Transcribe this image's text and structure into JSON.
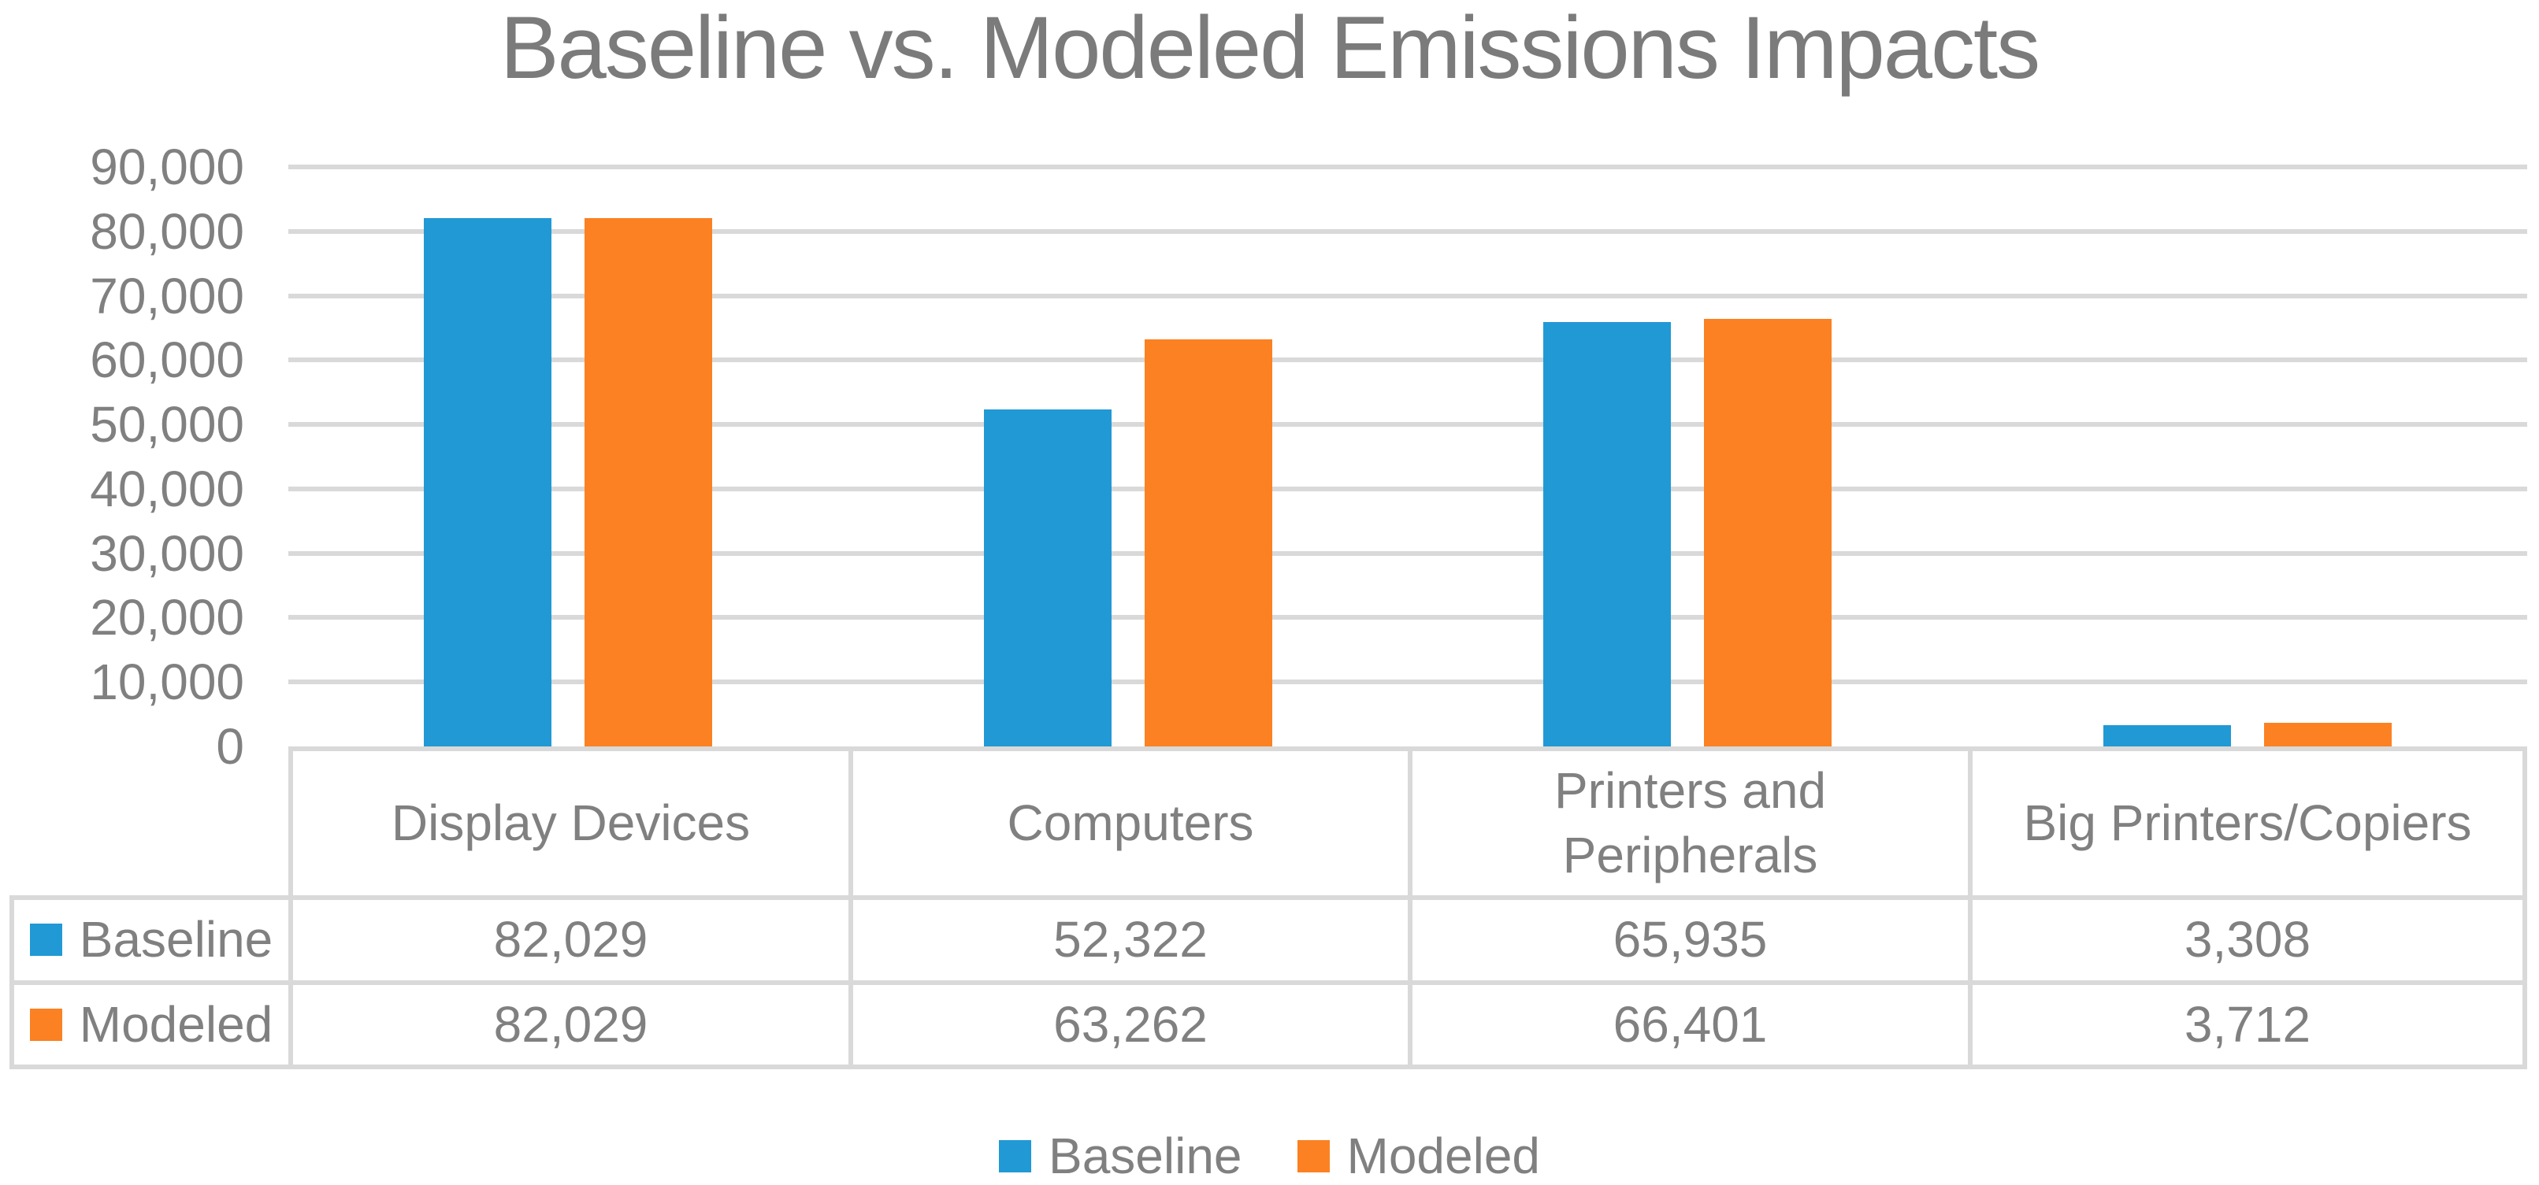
{
  "title": "Baseline vs. Modeled Emissions Impacts",
  "chart_data": {
    "type": "bar",
    "title": "Baseline vs. Modeled Emissions Impacts",
    "categories": [
      "Display Devices",
      "Computers",
      "Printers and\nPeripherals",
      "Big Printers/Copiers"
    ],
    "series": [
      {
        "name": "Baseline",
        "color": "#2199D5",
        "values": [
          82029,
          52322,
          65935,
          3308
        ]
      },
      {
        "name": "Modeled",
        "color": "#FB8122",
        "values": [
          82029,
          63262,
          66401,
          3712
        ]
      }
    ],
    "ylim": [
      0,
      90000
    ],
    "ytick_interval": 10000,
    "ytick_labels": [
      "90,000",
      "80,000",
      "70,000",
      "60,000",
      "50,000",
      "40,000",
      "30,000",
      "20,000",
      "10,000",
      "0"
    ],
    "grid": true,
    "legend_position": "bottom",
    "data_table": {
      "rows": [
        {
          "label": "Baseline",
          "values": [
            "82,029",
            "52,322",
            "65,935",
            "3,308"
          ]
        },
        {
          "label": "Modeled",
          "values": [
            "82,029",
            "63,262",
            "66,401",
            "3,712"
          ]
        }
      ]
    },
    "colors": {
      "grid": "#D9D9D9",
      "text": "#808080",
      "title_text": "#7B7B7B"
    }
  }
}
